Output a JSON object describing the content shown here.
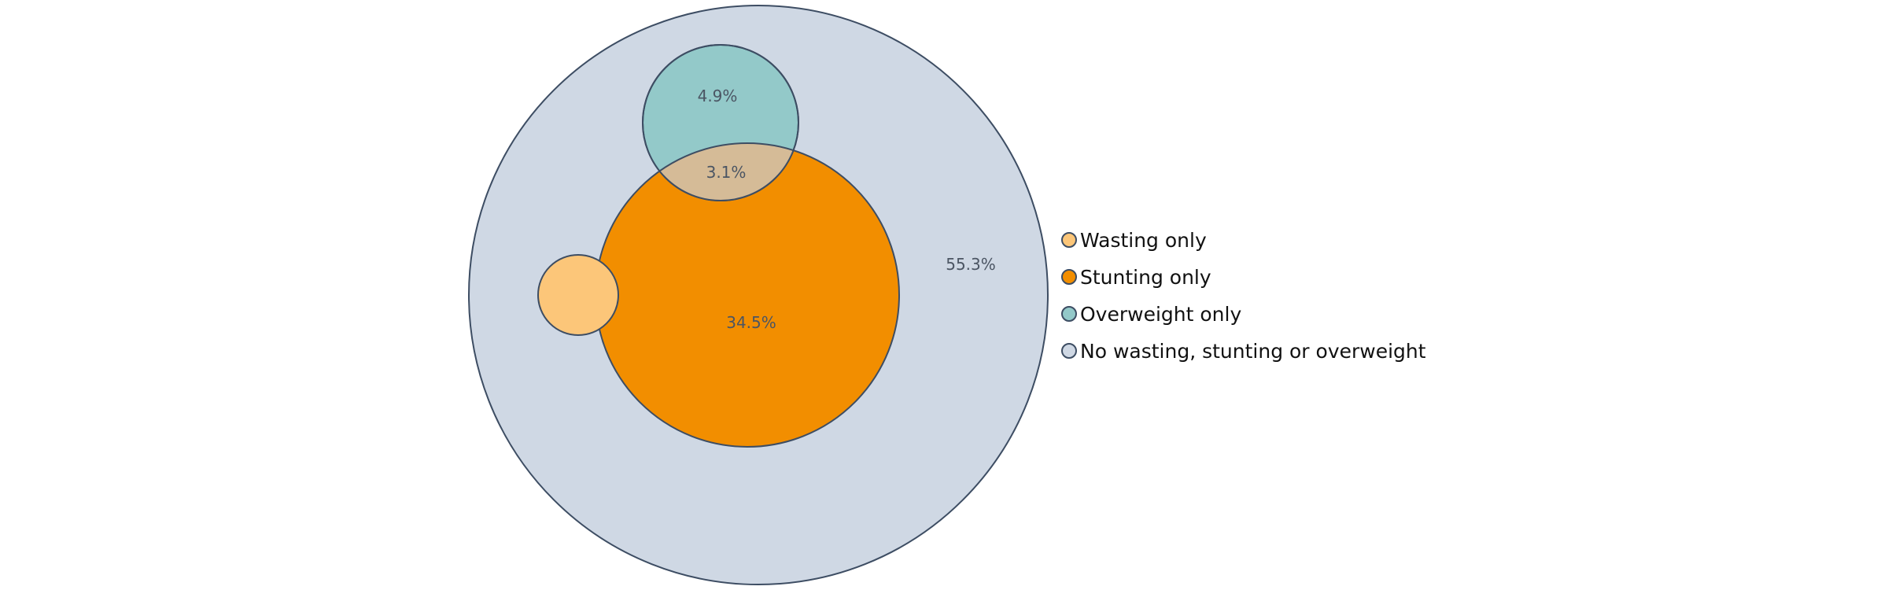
{
  "chart_data": {
    "type": "venn",
    "title": "",
    "colors": {
      "wasting": "#fcc679",
      "stunting": "#f28e00",
      "overweight": "#93c9c9",
      "overlap_stunting_overweight": "#d5bb97",
      "none": "#cfd8e4",
      "outline": "#3d4d63"
    },
    "legend_position": "right",
    "legend": [
      {
        "label": "Wasting only",
        "color": "#fcc679"
      },
      {
        "label": "Stunting only",
        "color": "#f28e00"
      },
      {
        "label": "Overweight only",
        "color": "#93c9c9"
      },
      {
        "label": "No wasting, stunting or overweight",
        "color": "#cfd8e4"
      }
    ],
    "regions": [
      {
        "set": "No wasting, stunting or overweight",
        "value": 55.3,
        "label": "55.3%"
      },
      {
        "set": "Stunting only",
        "value": 34.5,
        "label": "34.5%"
      },
      {
        "set": "Overweight only",
        "value": 4.9,
        "label": "4.9%"
      },
      {
        "set": "Stunting and overweight",
        "value": 3.1,
        "label": "3.1%"
      },
      {
        "set": "Wasting only",
        "value": null,
        "label": ""
      }
    ]
  }
}
